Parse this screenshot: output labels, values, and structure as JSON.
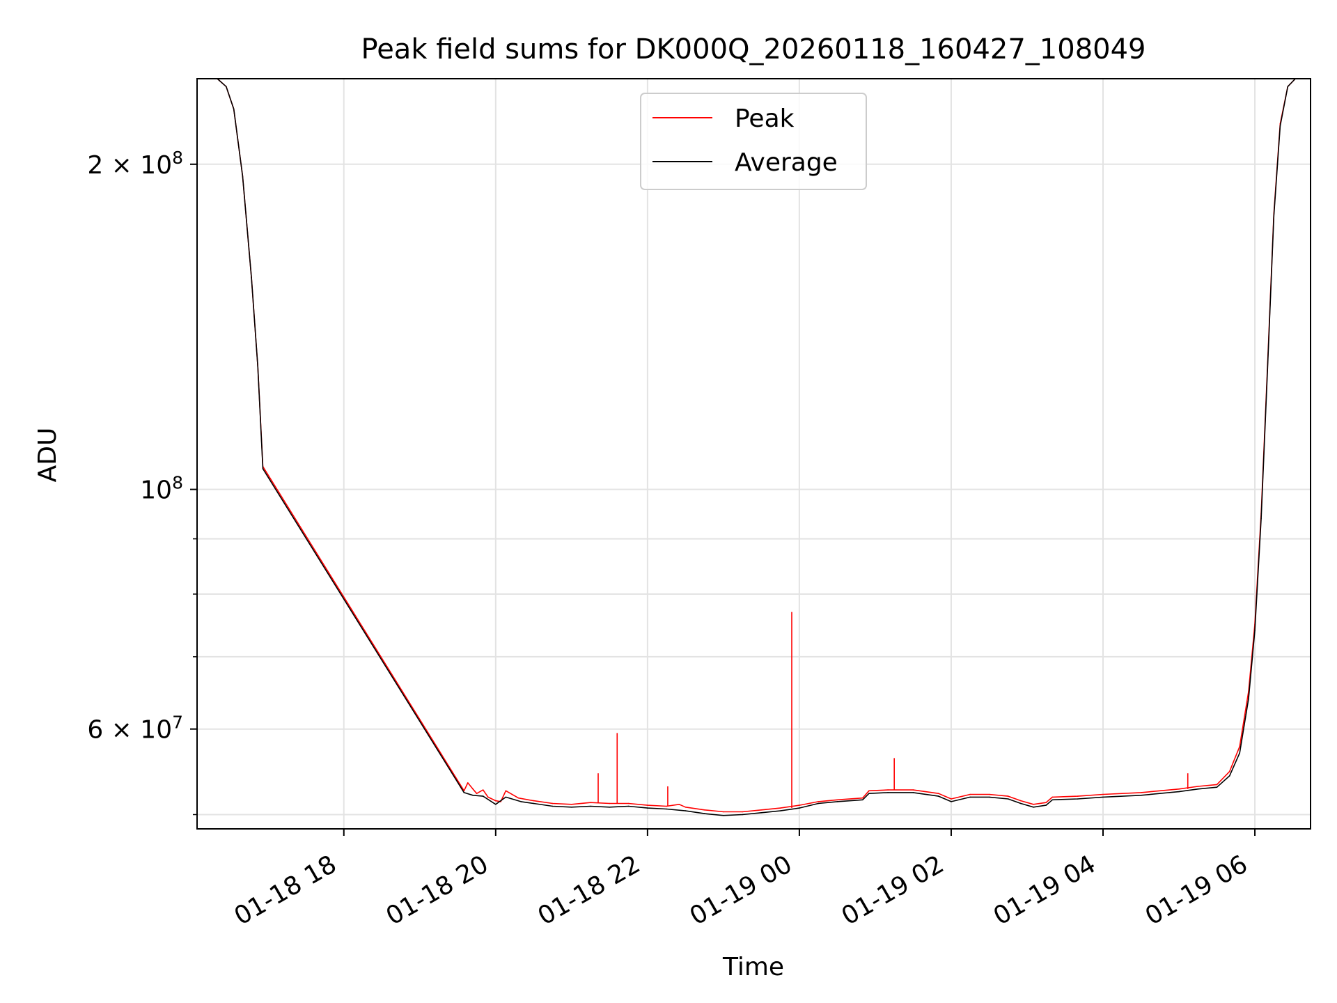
{
  "chart_data": {
    "type": "line",
    "title": "Peak field sums for DK000Q_20260118_160427_108049",
    "xlabel": "Time",
    "ylabel": "ADU",
    "yscale": "log",
    "grid": true,
    "legend_position": "upper-center",
    "xlim": [
      "2026-01-18 16:04",
      "2026-01-19 06:44"
    ],
    "ylim": [
      48500000,
      240000000
    ],
    "x_ticks": [
      {
        "value": "2026-01-18 18:00",
        "label": "01-18 18"
      },
      {
        "value": "2026-01-18 20:00",
        "label": "01-18 20"
      },
      {
        "value": "2026-01-18 22:00",
        "label": "01-18 22"
      },
      {
        "value": "2026-01-19 00:00",
        "label": "01-19 00"
      },
      {
        "value": "2026-01-19 02:00",
        "label": "01-19 02"
      },
      {
        "value": "2026-01-19 04:00",
        "label": "01-19 04"
      },
      {
        "value": "2026-01-19 06:00",
        "label": "01-19 06"
      }
    ],
    "y_major_ticks": [
      {
        "value": 200000000,
        "base": "2",
        "exp": "8"
      },
      {
        "value": 100000000,
        "base": "",
        "exp": "8"
      },
      {
        "value": 60000000,
        "base": "6",
        "exp": "7"
      }
    ],
    "y_minor_ticks": [
      50000000,
      70000000,
      80000000,
      90000000
    ],
    "series": [
      {
        "name": "Peak",
        "color": "#ff0000",
        "points": [
          [
            "2026-01-18 16:04",
            240000000
          ],
          [
            "2026-01-18 16:20",
            240000000
          ],
          [
            "2026-01-18 16:27",
            236000000
          ],
          [
            "2026-01-18 16:33",
            225000000
          ],
          [
            "2026-01-18 16:40",
            195000000
          ],
          [
            "2026-01-18 16:47",
            157000000
          ],
          [
            "2026-01-18 16:52",
            130000000
          ],
          [
            "2026-01-18 16:56",
            105000000
          ],
          [
            "2026-01-18 19:35",
            52600000
          ],
          [
            "2026-01-18 19:38",
            53500000
          ],
          [
            "2026-01-18 19:42",
            52800000
          ],
          [
            "2026-01-18 19:45",
            52300000
          ],
          [
            "2026-01-18 19:50",
            52700000
          ],
          [
            "2026-01-18 19:54",
            51900000
          ],
          [
            "2026-01-18 20:00",
            51500000
          ],
          [
            "2026-01-18 20:04",
            51400000
          ],
          [
            "2026-01-18 20:08",
            52600000
          ],
          [
            "2026-01-18 20:18",
            51800000
          ],
          [
            "2026-01-18 20:30",
            51500000
          ],
          [
            "2026-01-18 20:45",
            51200000
          ],
          [
            "2026-01-18 21:00",
            51100000
          ],
          [
            "2026-01-18 21:15",
            51300000
          ],
          [
            "2026-01-18 21:30",
            51200000
          ],
          [
            "2026-01-18 21:45",
            51200000
          ],
          [
            "2026-01-18 22:00",
            51000000
          ],
          [
            "2026-01-18 22:15",
            50900000
          ],
          [
            "2026-01-18 22:25",
            51100000
          ],
          [
            "2026-01-18 22:30",
            50800000
          ],
          [
            "2026-01-18 22:45",
            50500000
          ],
          [
            "2026-01-18 23:00",
            50300000
          ],
          [
            "2026-01-18 23:15",
            50300000
          ],
          [
            "2026-01-18 23:30",
            50500000
          ],
          [
            "2026-01-18 23:45",
            50700000
          ],
          [
            "2026-01-19 00:00",
            51000000
          ],
          [
            "2026-01-19 00:15",
            51400000
          ],
          [
            "2026-01-19 00:30",
            51600000
          ],
          [
            "2026-01-19 00:50",
            51800000
          ],
          [
            "2026-01-19 00:55",
            52600000
          ],
          [
            "2026-01-19 01:10",
            52700000
          ],
          [
            "2026-01-19 01:30",
            52700000
          ],
          [
            "2026-01-19 01:50",
            52300000
          ],
          [
            "2026-01-19 02:00",
            51700000
          ],
          [
            "2026-01-19 02:15",
            52200000
          ],
          [
            "2026-01-19 02:30",
            52200000
          ],
          [
            "2026-01-19 02:45",
            52000000
          ],
          [
            "2026-01-19 02:55",
            51500000
          ],
          [
            "2026-01-19 03:05",
            51100000
          ],
          [
            "2026-01-19 03:15",
            51300000
          ],
          [
            "2026-01-19 03:20",
            51900000
          ],
          [
            "2026-01-19 03:40",
            52000000
          ],
          [
            "2026-01-19 04:00",
            52200000
          ],
          [
            "2026-01-19 04:30",
            52400000
          ],
          [
            "2026-01-19 05:00",
            52800000
          ],
          [
            "2026-01-19 05:15",
            53100000
          ],
          [
            "2026-01-19 05:30",
            53300000
          ],
          [
            "2026-01-19 05:40",
            54800000
          ],
          [
            "2026-01-19 05:48",
            57800000
          ],
          [
            "2026-01-19 05:55",
            65000000
          ],
          [
            "2026-01-19 06:00",
            75000000
          ],
          [
            "2026-01-19 06:05",
            95000000
          ],
          [
            "2026-01-19 06:10",
            130000000
          ],
          [
            "2026-01-19 06:15",
            180000000
          ],
          [
            "2026-01-19 06:20",
            218000000
          ],
          [
            "2026-01-19 06:26",
            236000000
          ],
          [
            "2026-01-19 06:32",
            240000000
          ],
          [
            "2026-01-19 06:44",
            240000000
          ]
        ],
        "spikes": [
          [
            "2026-01-18 21:21",
            54600000
          ],
          [
            "2026-01-18 21:36",
            59500000
          ],
          [
            "2026-01-18 22:16",
            53100000
          ],
          [
            "2026-01-18 23:54",
            77000000
          ],
          [
            "2026-01-19 01:15",
            56400000
          ],
          [
            "2026-01-19 05:07",
            54600000
          ]
        ]
      },
      {
        "name": "Average",
        "color": "#000000",
        "points": [
          [
            "2026-01-18 16:04",
            240000000
          ],
          [
            "2026-01-18 16:20",
            240000000
          ],
          [
            "2026-01-18 16:27",
            236000000
          ],
          [
            "2026-01-18 16:33",
            225000000
          ],
          [
            "2026-01-18 16:40",
            195000000
          ],
          [
            "2026-01-18 16:47",
            157000000
          ],
          [
            "2026-01-18 16:52",
            130000000
          ],
          [
            "2026-01-18 16:56",
            104500000
          ],
          [
            "2026-01-18 19:35",
            52400000
          ],
          [
            "2026-01-18 19:42",
            52100000
          ],
          [
            "2026-01-18 19:50",
            52000000
          ],
          [
            "2026-01-18 20:00",
            51100000
          ],
          [
            "2026-01-18 20:08",
            51900000
          ],
          [
            "2026-01-18 20:20",
            51400000
          ],
          [
            "2026-01-18 20:30",
            51200000
          ],
          [
            "2026-01-18 20:45",
            50900000
          ],
          [
            "2026-01-18 21:00",
            50800000
          ],
          [
            "2026-01-18 21:15",
            50900000
          ],
          [
            "2026-01-18 21:30",
            50800000
          ],
          [
            "2026-01-18 21:45",
            50900000
          ],
          [
            "2026-01-18 22:00",
            50700000
          ],
          [
            "2026-01-18 22:15",
            50600000
          ],
          [
            "2026-01-18 22:30",
            50400000
          ],
          [
            "2026-01-18 22:45",
            50100000
          ],
          [
            "2026-01-18 23:00",
            49900000
          ],
          [
            "2026-01-18 23:15",
            50000000
          ],
          [
            "2026-01-18 23:30",
            50200000
          ],
          [
            "2026-01-18 23:45",
            50400000
          ],
          [
            "2026-01-19 00:00",
            50700000
          ],
          [
            "2026-01-19 00:15",
            51200000
          ],
          [
            "2026-01-19 00:30",
            51400000
          ],
          [
            "2026-01-19 00:50",
            51600000
          ],
          [
            "2026-01-19 00:55",
            52300000
          ],
          [
            "2026-01-19 01:10",
            52400000
          ],
          [
            "2026-01-19 01:30",
            52400000
          ],
          [
            "2026-01-19 01:50",
            52000000
          ],
          [
            "2026-01-19 02:00",
            51400000
          ],
          [
            "2026-01-19 02:15",
            51900000
          ],
          [
            "2026-01-19 02:30",
            51900000
          ],
          [
            "2026-01-19 02:45",
            51700000
          ],
          [
            "2026-01-19 02:55",
            51200000
          ],
          [
            "2026-01-19 03:05",
            50800000
          ],
          [
            "2026-01-19 03:15",
            51000000
          ],
          [
            "2026-01-19 03:20",
            51600000
          ],
          [
            "2026-01-19 03:40",
            51700000
          ],
          [
            "2026-01-19 04:00",
            51900000
          ],
          [
            "2026-01-19 04:30",
            52100000
          ],
          [
            "2026-01-19 05:00",
            52500000
          ],
          [
            "2026-01-19 05:15",
            52800000
          ],
          [
            "2026-01-19 05:30",
            53000000
          ],
          [
            "2026-01-19 05:40",
            54300000
          ],
          [
            "2026-01-19 05:48",
            57000000
          ],
          [
            "2026-01-19 05:55",
            64000000
          ],
          [
            "2026-01-19 06:00",
            74000000
          ],
          [
            "2026-01-19 06:05",
            94000000
          ],
          [
            "2026-01-19 06:10",
            129000000
          ],
          [
            "2026-01-19 06:15",
            179000000
          ],
          [
            "2026-01-19 06:20",
            217000000
          ],
          [
            "2026-01-19 06:26",
            236000000
          ],
          [
            "2026-01-19 06:32",
            240000000
          ],
          [
            "2026-01-19 06:44",
            240000000
          ]
        ]
      }
    ]
  }
}
